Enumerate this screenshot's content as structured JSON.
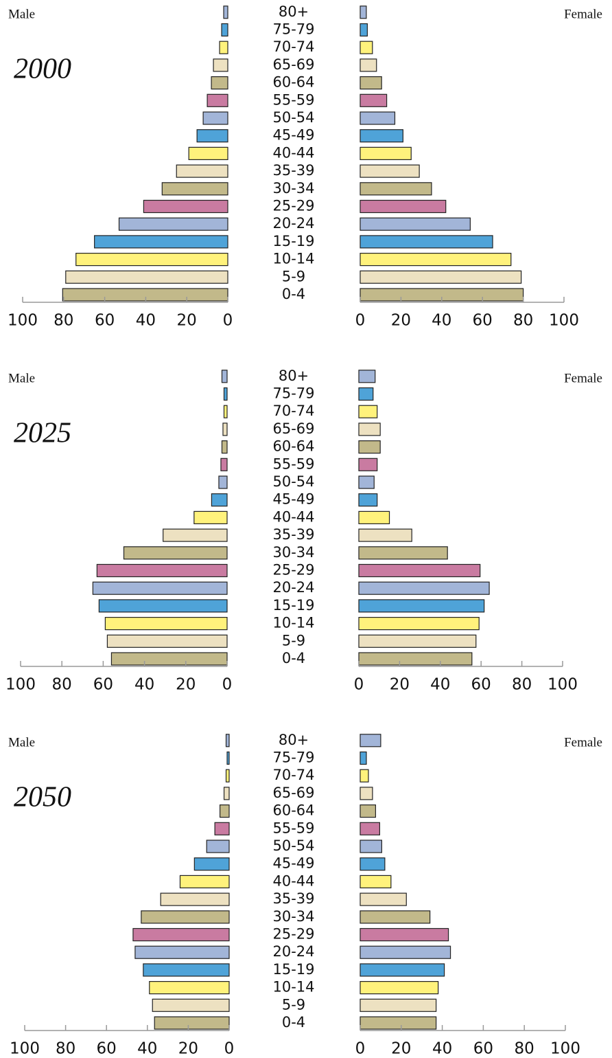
{
  "chart_data": [
    {
      "type": "pyramid",
      "title": "2000",
      "categories": [
        "0-4",
        "5-9",
        "10-14",
        "15-19",
        "20-24",
        "25-29",
        "30-34",
        "35-39",
        "40-44",
        "45-49",
        "50-54",
        "55-59",
        "60-64",
        "65-69",
        "70-74",
        "75-79",
        "80+"
      ],
      "colors": [
        "#c2b98a",
        "#ede1c1",
        "#fff27c",
        "#4fa3d8",
        "#a2b5d8",
        "#c97ba1",
        "#c2b98a",
        "#ede1c1",
        "#fff27c",
        "#4fa3d8",
        "#a2b5d8",
        "#c97ba1",
        "#c2b98a",
        "#ede1c1",
        "#fff27c",
        "#4fa3d8",
        "#a2b5d8"
      ],
      "series": [
        {
          "name": "Male",
          "values": [
            80.5,
            79,
            74,
            65,
            53,
            41,
            32,
            25,
            19,
            15,
            12,
            10,
            8,
            7,
            4,
            3,
            2
          ]
        },
        {
          "name": "Female",
          "values": [
            80,
            79,
            74,
            65,
            54,
            42,
            35,
            29,
            25,
            21,
            17,
            13,
            10.5,
            8,
            6,
            3.5,
            3
          ]
        }
      ],
      "xlim": [
        0,
        100
      ],
      "xticks": [
        0,
        20,
        40,
        60,
        80,
        100
      ]
    },
    {
      "type": "pyramid",
      "title": "2025",
      "categories": [
        "0-4",
        "5-9",
        "10-14",
        "15-19",
        "20-24",
        "25-29",
        "30-34",
        "35-39",
        "40-44",
        "45-49",
        "50-54",
        "55-59",
        "60-64",
        "65-69",
        "70-74",
        "75-79",
        "80+"
      ],
      "colors": [
        "#c2b98a",
        "#ede1c1",
        "#fff27c",
        "#4fa3d8",
        "#a2b5d8",
        "#c97ba1",
        "#c2b98a",
        "#ede1c1",
        "#fff27c",
        "#4fa3d8",
        "#a2b5d8",
        "#c97ba1",
        "#c2b98a",
        "#ede1c1",
        "#fff27c",
        "#4fa3d8",
        "#a2b5d8"
      ],
      "series": [
        {
          "name": "Male",
          "values": [
            56,
            58,
            59,
            62,
            65,
            63,
            50,
            31,
            16,
            7.5,
            4,
            3,
            2.5,
            2,
            1.5,
            1.5,
            2.5
          ]
        },
        {
          "name": "Female",
          "values": [
            55.5,
            57.5,
            59,
            61.5,
            64,
            59.5,
            43.5,
            26,
            15,
            9,
            7.5,
            9,
            10.5,
            10.5,
            9,
            7,
            8
          ]
        }
      ],
      "xlim": [
        0,
        100
      ],
      "xticks": [
        0,
        20,
        40,
        60,
        80,
        100
      ]
    },
    {
      "type": "pyramid",
      "title": "2050",
      "categories": [
        "0-4",
        "5-9",
        "10-14",
        "15-19",
        "20-24",
        "25-29",
        "30-34",
        "35-39",
        "40-44",
        "45-49",
        "50-54",
        "55-59",
        "60-64",
        "65-69",
        "70-74",
        "75-79",
        "80+"
      ],
      "colors": [
        "#c2b98a",
        "#ede1c1",
        "#fff27c",
        "#4fa3d8",
        "#a2b5d8",
        "#c97ba1",
        "#c2b98a",
        "#ede1c1",
        "#fff27c",
        "#4fa3d8",
        "#a2b5d8",
        "#c97ba1",
        "#c2b98a",
        "#ede1c1",
        "#fff27c",
        "#4fa3d8",
        "#a2b5d8"
      ],
      "series": [
        {
          "name": "Male",
          "values": [
            36.5,
            37.5,
            39,
            42,
            46,
            47,
            43,
            33.5,
            24,
            17,
            11,
            7,
            4.5,
            2.5,
            1.5,
            1,
            1.5
          ]
        },
        {
          "name": "Female",
          "values": [
            37,
            37,
            38,
            41,
            44,
            43,
            34,
            22.5,
            15,
            12,
            10.5,
            9.5,
            7.5,
            6,
            4,
            3,
            10
          ]
        }
      ],
      "xlim": [
        0,
        100
      ],
      "xticks": [
        0,
        20,
        40,
        60,
        80,
        100
      ]
    }
  ]
}
